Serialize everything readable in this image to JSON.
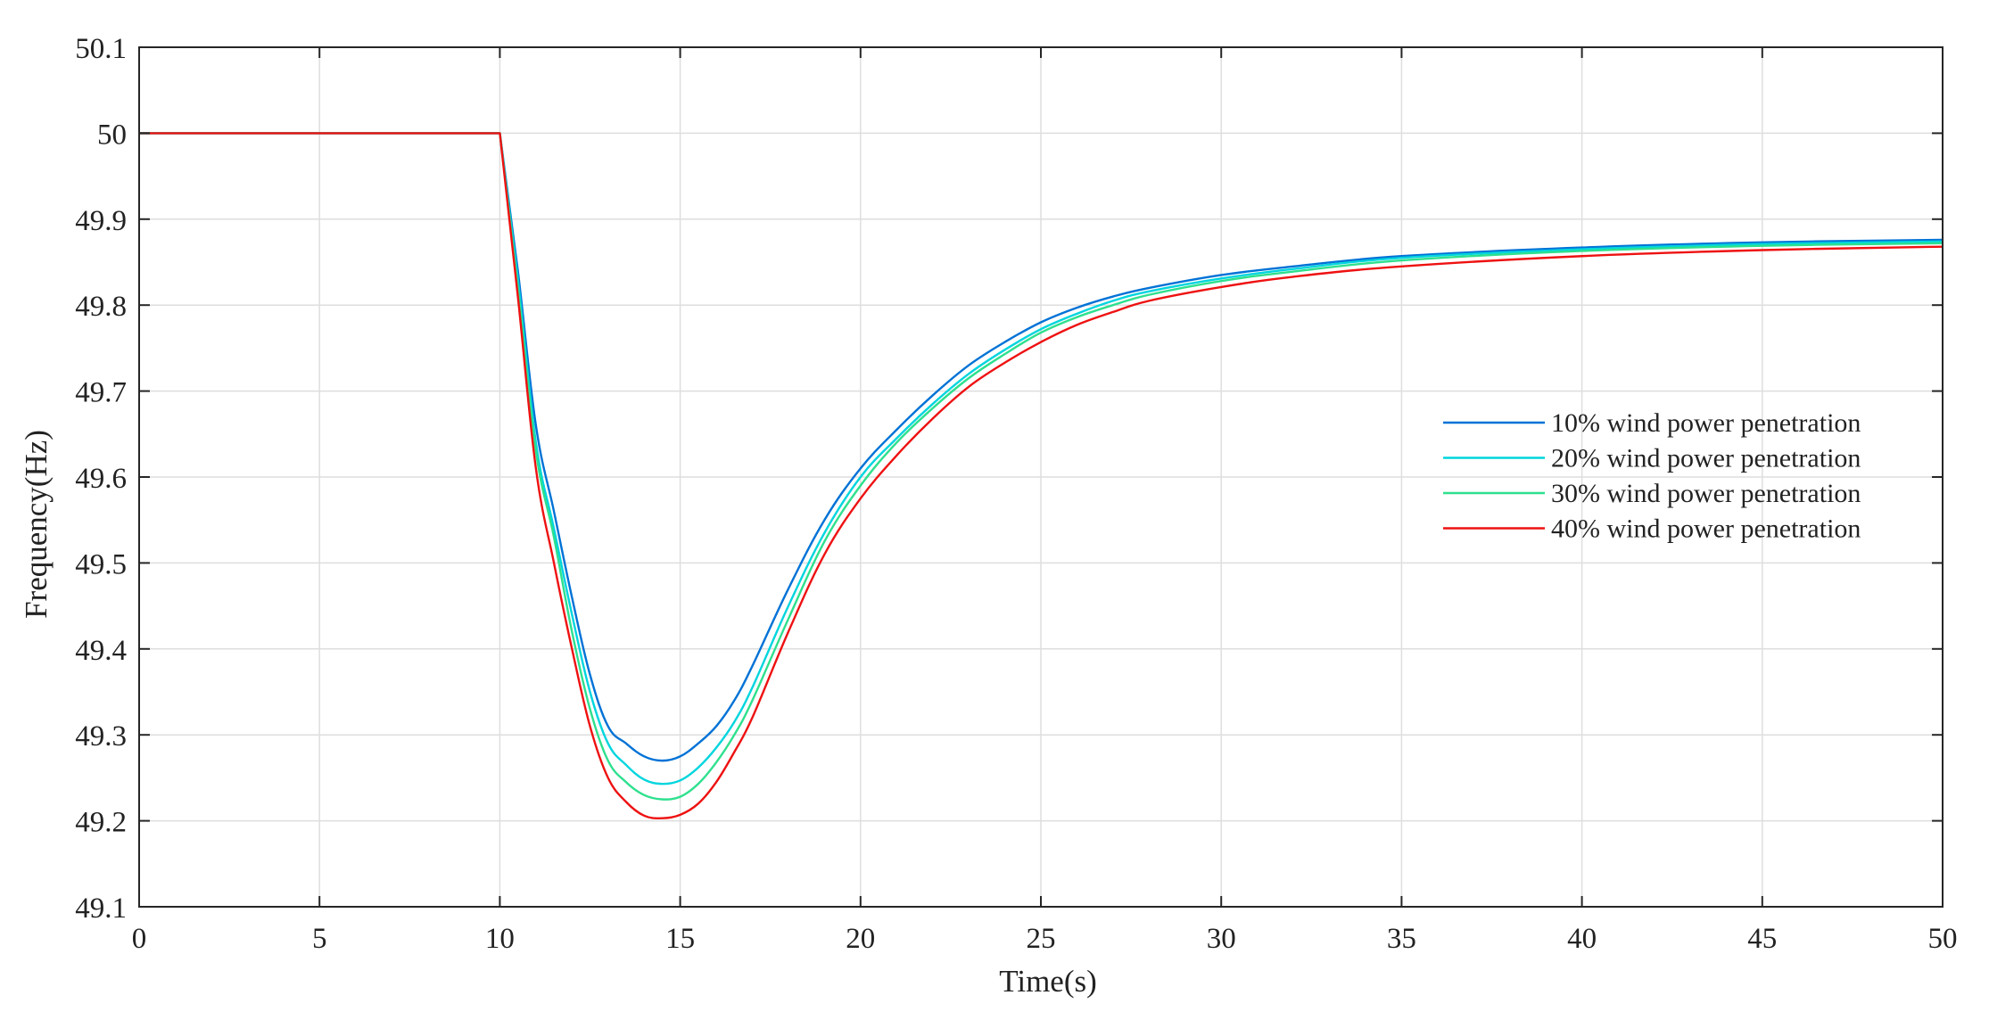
{
  "chart_data": {
    "type": "line",
    "title": "",
    "xlabel": "Time(s)",
    "ylabel": "Frequency(Hz)",
    "xlim": [
      0,
      50
    ],
    "ylim": [
      49.1,
      50.1
    ],
    "xticks": [
      0,
      5,
      10,
      15,
      20,
      25,
      30,
      35,
      40,
      45,
      50
    ],
    "yticks": [
      49.1,
      49.2,
      49.3,
      49.4,
      49.5,
      49.6,
      49.7,
      49.8,
      49.9,
      50,
      50.1
    ],
    "xtick_labels": [
      "0",
      "5",
      "10",
      "15",
      "20",
      "25",
      "30",
      "35",
      "40",
      "45",
      "50"
    ],
    "ytick_labels": [
      "49.1",
      "49.2",
      "49.3",
      "49.4",
      "49.5",
      "49.6",
      "49.7",
      "49.8",
      "49.9",
      "50",
      "50.1"
    ],
    "grid": true,
    "legend_position": "right",
    "x": [
      0,
      10,
      10.5,
      11,
      11.5,
      12,
      12.5,
      13,
      13.5,
      14,
      14.5,
      15,
      15.5,
      16,
      16.5,
      17,
      18,
      19,
      20,
      21,
      22,
      23,
      24,
      25,
      26,
      27,
      28,
      30,
      32,
      35,
      40,
      45,
      50
    ],
    "series": [
      {
        "name": "10% wind power penetration",
        "color": "#0072d6",
        "values": [
          50,
          50,
          49.84,
          49.66,
          49.56,
          49.46,
          49.37,
          49.31,
          49.29,
          49.275,
          49.27,
          49.275,
          49.29,
          49.31,
          49.34,
          49.38,
          49.47,
          49.55,
          49.61,
          49.655,
          49.695,
          49.73,
          49.757,
          49.78,
          49.797,
          49.81,
          49.82,
          49.835,
          49.845,
          49.857,
          49.867,
          49.873,
          49.876
        ]
      },
      {
        "name": "20% wind power penetration",
        "color": "#00d5de",
        "values": [
          50,
          50,
          49.83,
          49.64,
          49.54,
          49.44,
          49.35,
          49.29,
          49.265,
          49.248,
          49.243,
          49.247,
          49.262,
          49.285,
          49.315,
          49.355,
          49.45,
          49.535,
          49.6,
          49.645,
          49.685,
          49.72,
          49.748,
          49.772,
          49.79,
          49.805,
          49.816,
          49.831,
          49.842,
          49.855,
          49.865,
          49.871,
          49.874
        ]
      },
      {
        "name": "30% wind power penetration",
        "color": "#2ee08e",
        "values": [
          50,
          50,
          49.82,
          49.63,
          49.53,
          49.42,
          49.33,
          49.27,
          49.245,
          49.23,
          49.225,
          49.228,
          49.243,
          49.268,
          49.3,
          49.34,
          49.435,
          49.525,
          49.59,
          49.64,
          49.68,
          49.715,
          49.743,
          49.768,
          49.786,
          49.8,
          49.812,
          49.828,
          49.839,
          49.852,
          49.863,
          49.869,
          49.872
        ]
      },
      {
        "name": "40% wind power penetration",
        "color": "#ee1111",
        "values": [
          50,
          50,
          49.81,
          49.61,
          49.5,
          49.4,
          49.31,
          49.25,
          49.222,
          49.206,
          49.203,
          49.207,
          49.22,
          49.245,
          49.28,
          49.32,
          49.42,
          49.51,
          49.575,
          49.625,
          49.668,
          49.705,
          49.733,
          49.757,
          49.777,
          49.792,
          49.805,
          49.821,
          49.833,
          49.845,
          49.857,
          49.864,
          49.868
        ]
      }
    ]
  }
}
